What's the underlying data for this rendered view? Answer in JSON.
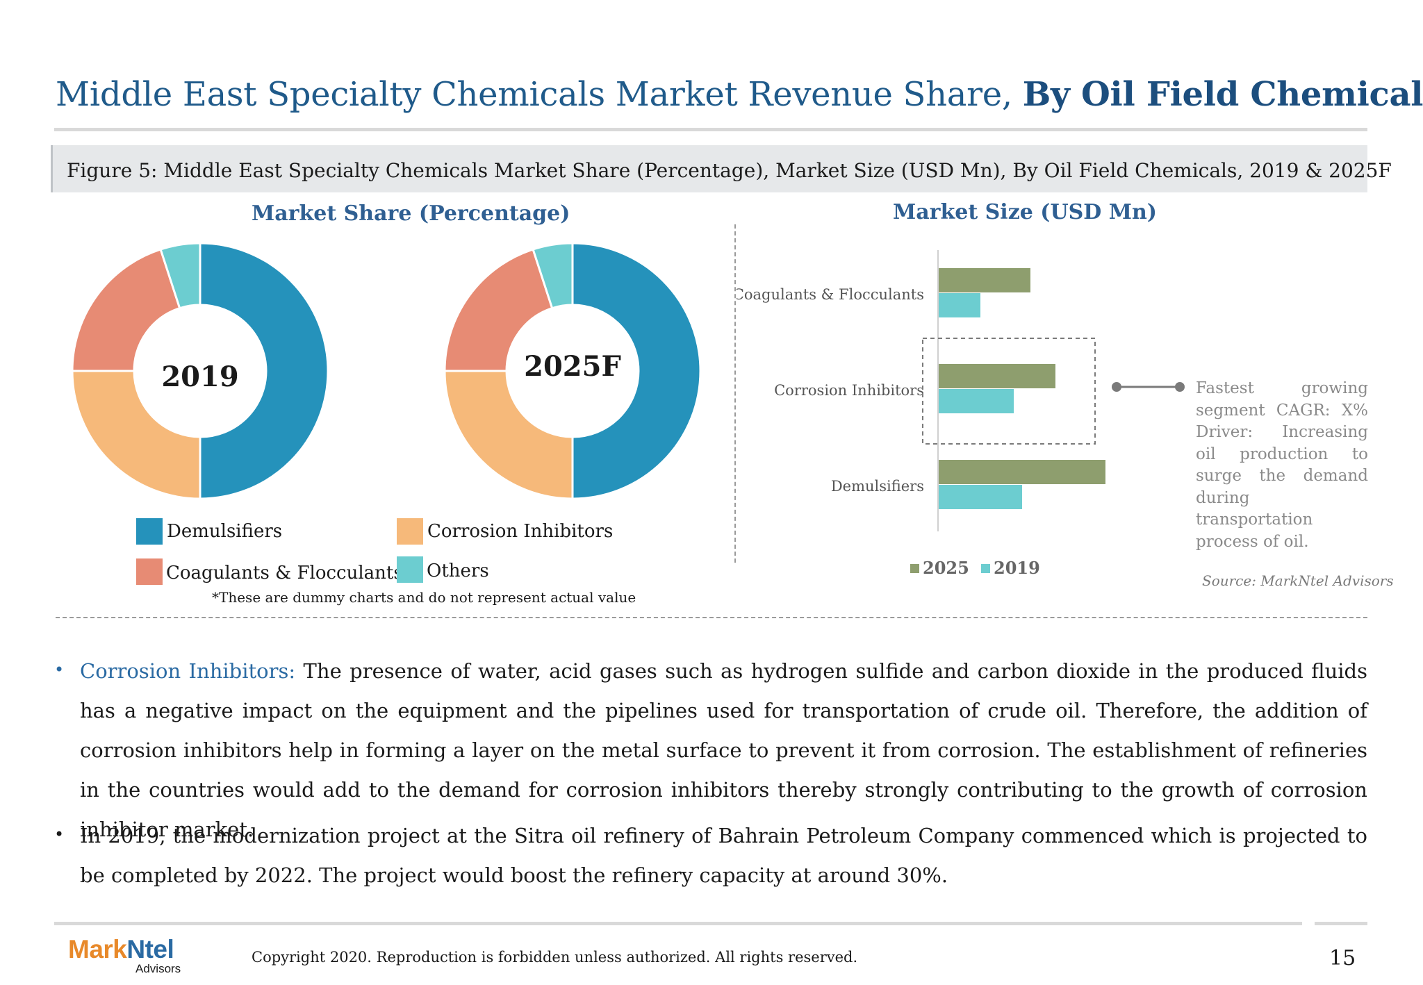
{
  "header": {
    "title_main": "Middle East Specialty Chemicals Market Revenue Share,",
    "title_bold": "By Oil Field Chemicals",
    "figure_caption": "Figure 5: Middle East Specialty Chemicals Market Share (Percentage), Market Size (USD Mn),  By Oil Field Chemicals, 2019 & 2025F"
  },
  "colors": {
    "demulsifiers": "#2592bb",
    "corrosion_inhibitors": "#f6b97a",
    "coagulants_flocculants": "#e78b74",
    "others": "#6ccdd0",
    "bar_2025": "#8e9e6e",
    "bar_2019": "#6ccdd0"
  },
  "chart_data": [
    {
      "type": "pie",
      "variant": "donut",
      "title": "Market Share (Percentage)",
      "center_label": "2019",
      "categories": [
        "Demulsifiers",
        "Corrosion Inhibitors",
        "Coagulants & Flocculants",
        "Others"
      ],
      "values": [
        50,
        25,
        20,
        5
      ]
    },
    {
      "type": "pie",
      "variant": "donut",
      "center_label": "2025F",
      "categories": [
        "Demulsifiers",
        "Corrosion Inhibitors",
        "Coagulants & Flocculants",
        "Others"
      ],
      "values": [
        50,
        25,
        20,
        5
      ]
    },
    {
      "type": "bar",
      "orientation": "horizontal",
      "title": "Market Size (USD Mn)",
      "categories": [
        "Coagulants & Flocculants",
        "Corrosion Inhibitors",
        "Demulsifiers"
      ],
      "series": [
        {
          "name": "2025",
          "values": [
            55,
            70,
            100
          ]
        },
        {
          "name": "2019",
          "values": [
            25,
            45,
            50
          ]
        }
      ],
      "xlim": [
        0,
        100
      ],
      "legend_position": "bottom",
      "grid": false
    }
  ],
  "legend": {
    "demulsifiers": "Demulsifiers",
    "corrosion_inhibitors": "Corrosion Inhibitors",
    "coagulants_flocculants": "Coagulants & Flocculants",
    "others": "Others"
  },
  "note": "*These are dummy charts and do not represent actual value",
  "annotation": "Fastest growing segment CAGR: X% Driver: Increasing oil production to surge the demand during transportation process of oil.",
  "source": "Source: MarkNtel Advisors",
  "bullets": [
    {
      "label": "Corrosion Inhibitors:",
      "text": " The presence of water, acid gases such as hydrogen sulfide and carbon dioxide in the produced fluids has a negative impact on the equipment and the pipelines used for transportation of crude oil. Therefore, the addition of corrosion inhibitors help in forming a layer on the metal surface to prevent it from corrosion. The establishment of refineries in the countries would add to the demand for corrosion inhibitors thereby strongly contributing to the growth of corrosion inhibitor market."
    },
    {
      "text": "In 2019, the modernization project at the Sitra oil refinery of Bahrain Petroleum Company commenced which is projected to be completed by 2022. The project would boost the refinery capacity at around 30%."
    }
  ],
  "footer": {
    "logo_mark": "Mark",
    "logo_ntel": "Ntel",
    "logo_sub": "Advisors",
    "copyright": "Copyright 2020. Reproduction is forbidden unless authorized. All rights reserved.",
    "page_number": "15"
  }
}
